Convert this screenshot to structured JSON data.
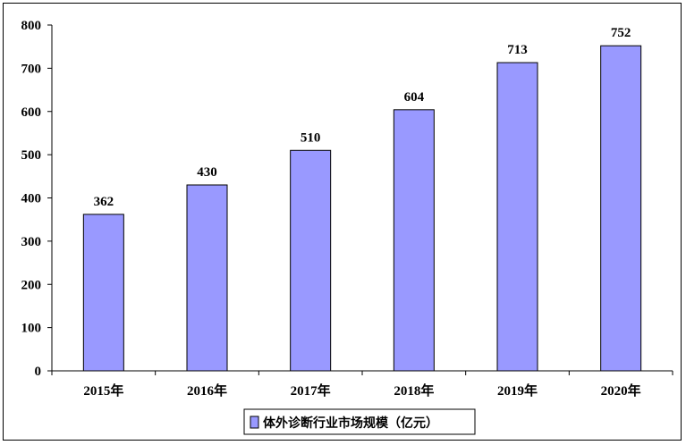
{
  "chart_data": {
    "type": "bar",
    "categories": [
      "2015年",
      "2016年",
      "2017年",
      "2018年",
      "2019年",
      "2020年"
    ],
    "series": [
      {
        "name": "体外诊断行业市场规模（亿元）",
        "values": [
          362,
          430,
          510,
          604,
          713,
          752
        ]
      }
    ],
    "ylim": [
      0,
      800
    ],
    "yticks": [
      0,
      100,
      200,
      300,
      400,
      500,
      600,
      700,
      800
    ],
    "grid": false,
    "legend_position": "bottom",
    "bar_color": "#9999ff",
    "bar_border_color": "#000000"
  }
}
